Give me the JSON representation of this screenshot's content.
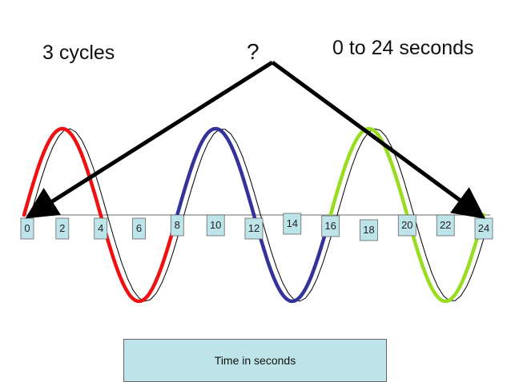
{
  "labels": {
    "cycles": "3 cycles",
    "question": "?",
    "range": "0 to 24 seconds",
    "time_box": "Time  in seconds"
  },
  "ticks": [
    "0",
    "2",
    "4",
    "6",
    "8",
    "10",
    "12",
    "14",
    "16",
    "18",
    "20",
    "22",
    "24"
  ],
  "colors": {
    "cycle1": "#ee1111",
    "cycle2": "#333399",
    "cycle3": "#99dd22",
    "reference": "#000000",
    "tick_box": "#bde4e8",
    "arrow": "#000000"
  }
}
